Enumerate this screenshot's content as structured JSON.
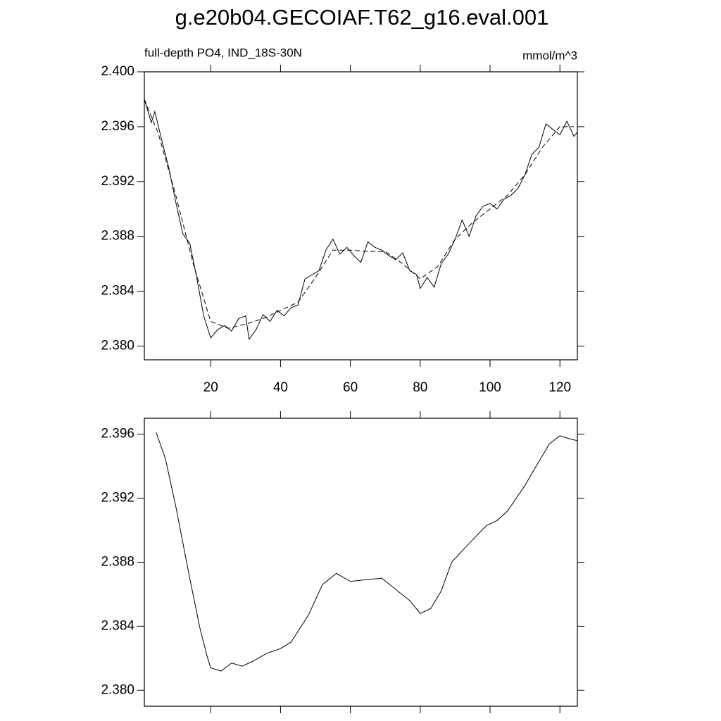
{
  "chart_data": [
    {
      "type": "line",
      "title": "g.e20b04.GECOIAF.T62_g16.eval.001",
      "left_label": "full-depth PO4, IND_18S-30N",
      "right_label": "mmol/m^3",
      "xlim": [
        1,
        125
      ],
      "xticks": [
        20,
        40,
        60,
        80,
        100,
        120
      ],
      "ylim": [
        2.379,
        2.4
      ],
      "yticks": [
        {
          "value": 2.38,
          "label": "2.380"
        },
        2.384,
        2.388,
        2.392,
        2.396,
        {
          "value": 2.4,
          "label": "2.400"
        }
      ],
      "series": [
        {
          "color": "#000000",
          "dashed": false,
          "x": [
            1,
            3,
            4,
            6,
            8,
            10,
            12,
            14,
            16,
            18,
            20,
            22,
            24,
            26,
            28,
            30,
            31,
            33,
            35,
            37,
            39,
            41,
            43,
            45,
            47,
            49,
            51,
            53,
            55,
            57,
            59,
            61,
            63,
            65,
            67,
            69,
            71,
            73,
            75,
            77,
            79,
            80,
            82,
            84,
            86,
            88,
            90,
            92,
            94,
            96,
            98,
            100,
            102,
            104,
            106,
            108,
            110,
            112,
            114,
            116,
            118,
            120,
            122,
            124,
            125
          ],
          "values": [
            2.398,
            2.3963,
            2.3971,
            2.395,
            2.393,
            2.3905,
            2.3882,
            2.3875,
            2.385,
            2.3822,
            2.3806,
            2.3812,
            2.3815,
            2.3811,
            2.382,
            2.3822,
            2.3805,
            2.3812,
            2.3823,
            2.3818,
            2.3826,
            2.3822,
            2.3828,
            2.383,
            2.3849,
            2.3852,
            2.3855,
            2.387,
            2.3878,
            2.3867,
            2.3872,
            2.3866,
            2.3861,
            2.3876,
            2.3872,
            2.387,
            2.3866,
            2.3863,
            2.3868,
            2.3855,
            2.3852,
            2.3842,
            2.385,
            2.3843,
            2.386,
            2.3867,
            2.3878,
            2.3892,
            2.388,
            2.3895,
            2.3902,
            2.3904,
            2.39,
            2.3907,
            2.391,
            2.3915,
            2.3925,
            2.394,
            2.3945,
            2.3962,
            2.3958,
            2.3954,
            2.3964,
            2.3953,
            2.3956
          ]
        },
        {
          "color": "#000000",
          "dashed": true,
          "x": [
            1,
            5,
            10,
            15,
            20,
            25,
            30,
            35,
            40,
            45,
            50,
            55,
            60,
            65,
            70,
            75,
            80,
            85,
            90,
            95,
            100,
            105,
            110,
            115,
            120,
            124
          ],
          "values": [
            2.398,
            2.3955,
            2.391,
            2.386,
            2.3818,
            2.3813,
            2.3816,
            2.382,
            2.3826,
            2.3832,
            2.385,
            2.387,
            2.387,
            2.3869,
            2.3869,
            2.386,
            2.3849,
            2.3858,
            2.3878,
            2.389,
            2.39,
            2.391,
            2.3925,
            2.3945,
            2.396,
            2.396
          ]
        }
      ]
    },
    {
      "type": "line",
      "xlim": [
        1,
        125
      ],
      "xticks": [
        20,
        40,
        60,
        80,
        100,
        120
      ],
      "ylim": [
        2.379,
        2.397
      ],
      "yticks": [
        {
          "value": 2.38,
          "label": "2.380"
        },
        2.384,
        2.388,
        2.392,
        2.396
      ],
      "series": [
        {
          "color": "#000000",
          "dashed": false,
          "x": [
            4.4,
            7,
            10,
            14,
            17,
            19,
            20,
            23,
            26,
            29,
            32,
            36,
            40,
            43,
            48,
            52,
            56,
            60,
            64,
            69,
            73,
            77,
            80,
            83,
            86,
            89,
            92,
            95,
            99,
            102,
            105,
            110,
            114,
            117,
            120,
            123,
            125
          ],
          "values": [
            2.3961,
            2.3945,
            2.3915,
            2.387,
            2.3838,
            2.3821,
            2.3814,
            2.3812,
            2.3817,
            2.3815,
            2.3818,
            2.3823,
            2.3826,
            2.383,
            2.3847,
            2.3866,
            2.3873,
            2.3868,
            2.3869,
            2.387,
            2.3863,
            2.3856,
            2.3848,
            2.3851,
            2.3862,
            2.388,
            2.3887,
            2.3894,
            2.3903,
            2.3906,
            2.3912,
            2.3928,
            2.3943,
            2.3954,
            2.3959,
            2.3957,
            2.3956
          ]
        }
      ]
    }
  ]
}
